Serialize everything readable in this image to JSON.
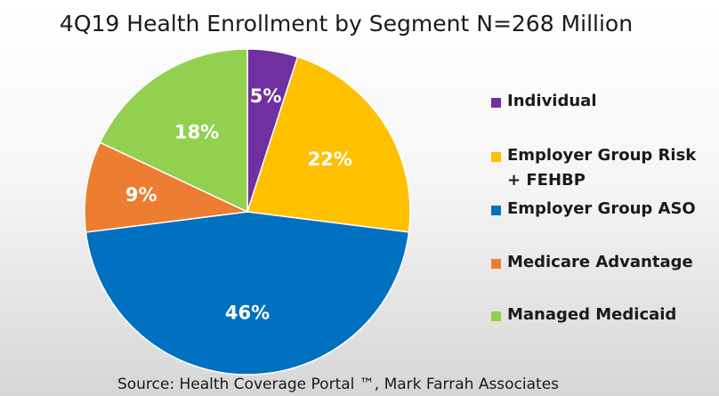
{
  "chart_data": {
    "type": "pie",
    "title": "4Q19 Health Enrollment by Segment N=268 Million",
    "categories": [
      "Individual",
      "Employer Group Risk + FEHBP",
      "Employer Group ASO",
      "Medicare Advantage",
      "Managed Medicaid"
    ],
    "values": [
      5,
      22,
      46,
      9,
      18
    ],
    "labels": [
      "5%",
      "22%",
      "46%",
      "9%",
      "18%"
    ],
    "colors": [
      "#7030a0",
      "#ffc000",
      "#0070c0",
      "#ed7d31",
      "#92d050"
    ],
    "legend_position": "right",
    "source": "Source: Health Coverage Portal ™, Mark Farrah Associates"
  }
}
